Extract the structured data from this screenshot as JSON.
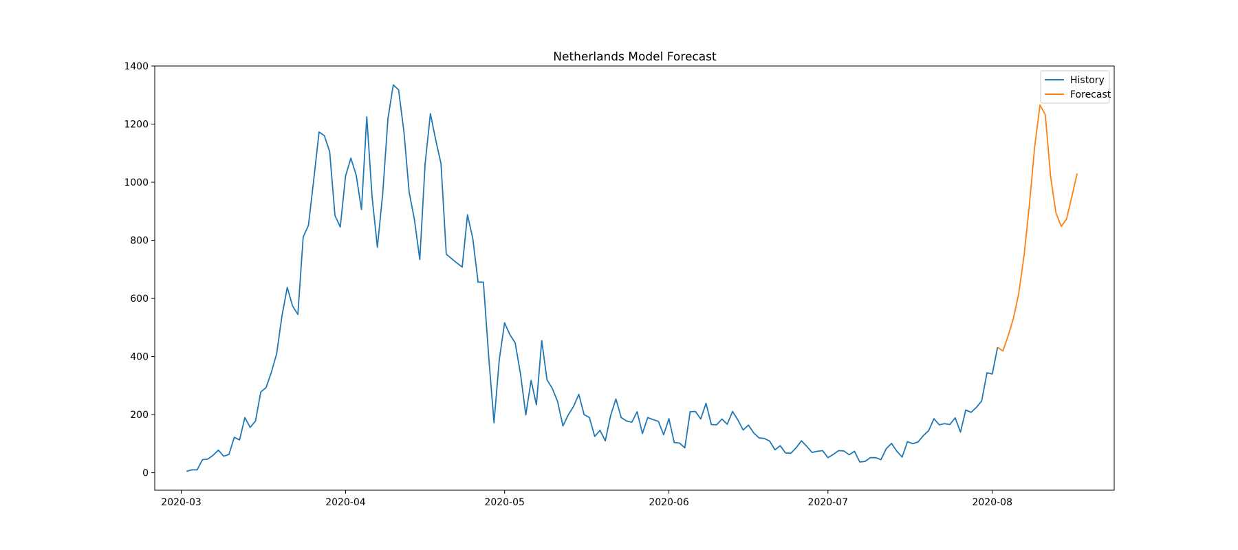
{
  "chart_data": {
    "type": "line",
    "title": "Netherlands Model Forecast",
    "xlabel": "",
    "ylabel": "",
    "x_axis_type": "date",
    "xlim": [
      "2020-02-25",
      "2020-08-24"
    ],
    "ylim": [
      -60,
      1400
    ],
    "grid": false,
    "legend_position": "top-right",
    "x_ticks": [
      "2020-03-01",
      "2020-04-01",
      "2020-05-01",
      "2020-06-01",
      "2020-07-01",
      "2020-08-01"
    ],
    "x_tick_labels": [
      "2020-03",
      "2020-04",
      "2020-05",
      "2020-06",
      "2020-07",
      "2020-08"
    ],
    "y_ticks": [
      0,
      200,
      400,
      600,
      800,
      1000,
      1200,
      1400
    ],
    "y_tick_labels": [
      "0",
      "200",
      "400",
      "600",
      "800",
      "1000",
      "1200",
      "1400"
    ],
    "series": [
      {
        "name": "History",
        "color": "#1f77b4",
        "start_date": "2020-03-02",
        "values": [
          5,
          10,
          10,
          45,
          47,
          60,
          78,
          57,
          63,
          122,
          113,
          190,
          156,
          178,
          278,
          293,
          346,
          410,
          540,
          638,
          574,
          545,
          811,
          852,
          1010,
          1173,
          1160,
          1105,
          885,
          846,
          1022,
          1083,
          1024,
          906,
          1225,
          950,
          776,
          960,
          1220,
          1335,
          1318,
          1175,
          965,
          870,
          734,
          1062,
          1236,
          1146,
          1064,
          752,
          737,
          722,
          708,
          888,
          806,
          656,
          656,
          400,
          172,
          390,
          516,
          475,
          447,
          340,
          199,
          318,
          234,
          455,
          320,
          290,
          245,
          161,
          199,
          228,
          270,
          200,
          190,
          125,
          146,
          110,
          197,
          254,
          190,
          178,
          174,
          210,
          135,
          190,
          183,
          177,
          131,
          186,
          104,
          102,
          86,
          210,
          211,
          185,
          239,
          166,
          165,
          185,
          167,
          211,
          182,
          147,
          164,
          137,
          120,
          118,
          109,
          79,
          93,
          68,
          67,
          86,
          110,
          91,
          70,
          74,
          76,
          52,
          63,
          76,
          75,
          62,
          74,
          37,
          39,
          52,
          52,
          45,
          83,
          101,
          74,
          54,
          107,
          100,
          106,
          128,
          145,
          186,
          165,
          169,
          166,
          189,
          140,
          216,
          208,
          225,
          247,
          344,
          340,
          432
        ]
      },
      {
        "name": "Forecast",
        "color": "#ff7f0e",
        "start_date": "2020-08-02",
        "values": [
          432,
          419,
          472,
          532,
          618,
          748,
          922,
          1122,
          1266,
          1232,
          1020,
          895,
          848,
          873,
          950,
          1030
        ]
      }
    ]
  }
}
